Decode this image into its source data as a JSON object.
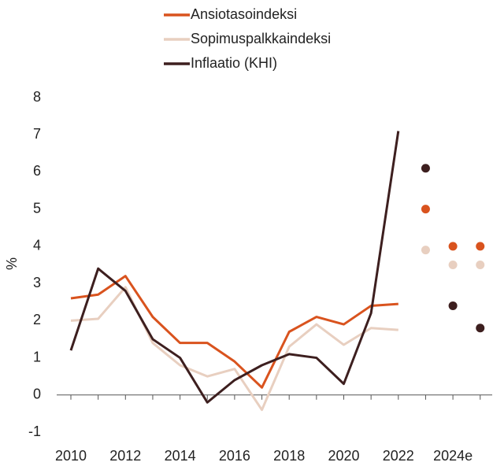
{
  "chart_data": {
    "type": "line",
    "y_label": "%",
    "categories": [
      "2010",
      null,
      "2012",
      null,
      "2014",
      null,
      "2016",
      null,
      "2018",
      null,
      "2020",
      null,
      "2022",
      null,
      "2024e",
      null
    ],
    "forecast_start": 13,
    "series": [
      {
        "name": "Ansiotasoindeksi",
        "color": "#d9531e",
        "values": [
          2.6,
          2.7,
          3.2,
          2.1,
          1.4,
          1.4,
          0.9,
          0.2,
          1.7,
          2.1,
          1.9,
          2.4,
          2.45,
          5.0,
          4.0,
          4.0
        ]
      },
      {
        "name": "Sopimuspalkkaindeksi",
        "color": "#e8cfc0",
        "values": [
          2.0,
          2.05,
          2.9,
          1.4,
          0.8,
          0.5,
          0.7,
          -0.4,
          1.3,
          1.9,
          1.35,
          1.8,
          1.75,
          3.9,
          3.5,
          3.5
        ]
      },
      {
        "name": "Inflaatio (KHI)",
        "color": "#3d1f1f",
        "values": [
          1.2,
          3.4,
          2.8,
          1.5,
          1.0,
          -0.2,
          0.4,
          0.8,
          1.1,
          1.0,
          0.3,
          2.2,
          7.1,
          6.1,
          2.4,
          1.8
        ]
      }
    ],
    "ylim": [
      -1,
      8
    ],
    "yticks": [
      -1,
      0,
      1,
      2,
      3,
      4,
      5,
      6,
      7,
      8
    ],
    "grid": false,
    "legend": "top"
  }
}
